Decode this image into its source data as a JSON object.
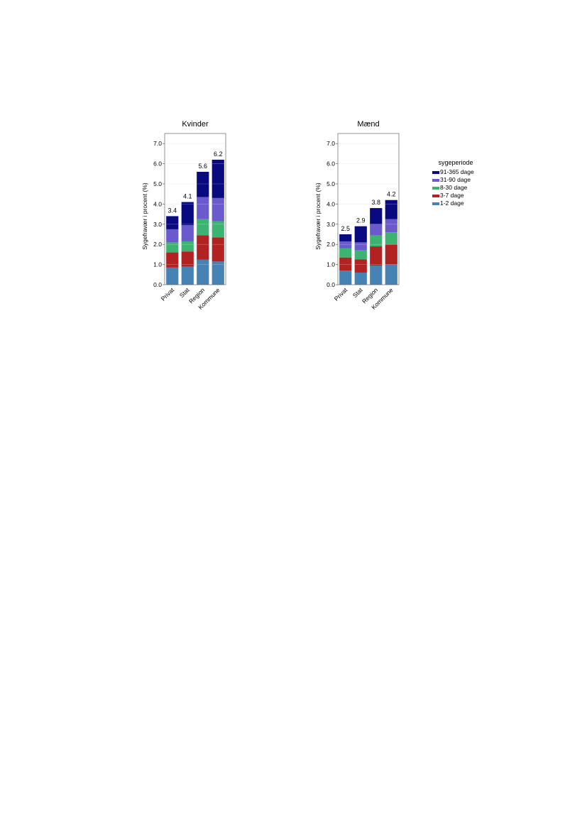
{
  "legend": {
    "title": "sygeperiode",
    "items": [
      {
        "label": "91-365 dage",
        "color": "#0a0a80"
      },
      {
        "label": "31-90 dage",
        "color": "#6a5acd"
      },
      {
        "label": "8-30 dage",
        "color": "#3cb371"
      },
      {
        "label": "3-7 dage",
        "color": "#b22222"
      },
      {
        "label": "1-2 dage",
        "color": "#4682b4"
      }
    ]
  },
  "chart_data": [
    {
      "type": "bar",
      "stacked": true,
      "title": "Kvinder",
      "ylabel": "Sygefravær i procent (%)",
      "xlabel": "",
      "ylim": [
        0,
        7.5
      ],
      "yticks": [
        "0.0",
        "1.0",
        "2.0",
        "3.0",
        "4.0",
        "5.0",
        "6.0",
        "7.0"
      ],
      "categories": [
        "Privat",
        "Stat",
        "Region",
        "Kommune"
      ],
      "totals": [
        "3.4",
        "4.1",
        "5.6",
        "6.2"
      ],
      "series": [
        {
          "name": "1-2 dage",
          "values": [
            0.85,
            0.9,
            1.25,
            1.15
          ]
        },
        {
          "name": "3-7 dage",
          "values": [
            0.75,
            0.75,
            1.2,
            1.2
          ]
        },
        {
          "name": "8-30 dage",
          "values": [
            0.5,
            0.5,
            0.8,
            0.8
          ]
        },
        {
          "name": "31-90 dage",
          "values": [
            0.65,
            0.8,
            1.1,
            1.15
          ]
        },
        {
          "name": "91-365 dage",
          "values": [
            0.65,
            1.15,
            1.25,
            1.9
          ]
        }
      ]
    },
    {
      "type": "bar",
      "stacked": true,
      "title": "Mænd",
      "ylabel": "Sygefravær i procent (%)",
      "xlabel": "",
      "ylim": [
        0,
        7.5
      ],
      "yticks": [
        "0.0",
        "1.0",
        "2.0",
        "3.0",
        "4.0",
        "5.0",
        "6.0",
        "7.0"
      ],
      "categories": [
        "Privat",
        "Stat",
        "Region",
        "Kommune"
      ],
      "totals": [
        "2.5",
        "2.9",
        "3.8",
        "4.2"
      ],
      "series": [
        {
          "name": "1-2 dage",
          "values": [
            0.7,
            0.6,
            0.95,
            1.0
          ]
        },
        {
          "name": "3-7 dage",
          "values": [
            0.65,
            0.65,
            0.95,
            1.0
          ]
        },
        {
          "name": "8-30 dage",
          "values": [
            0.45,
            0.45,
            0.55,
            0.6
          ]
        },
        {
          "name": "31-90 dage",
          "values": [
            0.35,
            0.4,
            0.55,
            0.65
          ]
        },
        {
          "name": "91-365 dage",
          "values": [
            0.35,
            0.8,
            0.8,
            0.95
          ]
        }
      ]
    }
  ]
}
